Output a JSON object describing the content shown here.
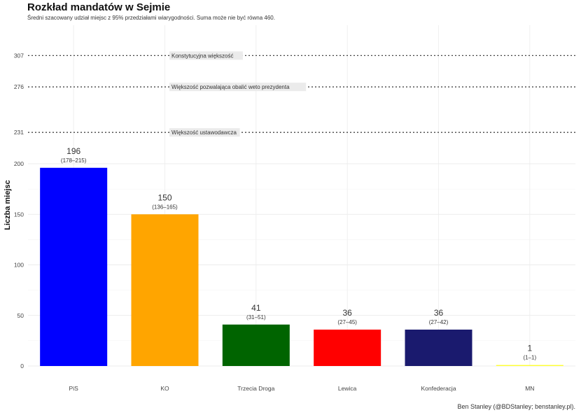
{
  "chart_data": {
    "type": "bar",
    "title": "Rozkład mandatów w Sejmie",
    "subtitle": "Średni szacowany udział miejsc z 95% przedziałami wiarygodności. Suma może nie być równa 460.",
    "caption": "Ben Stanley (@BDStanley; benstanley.pl).",
    "ylabel": "Liczba miejsc",
    "xlabel": "",
    "categories": [
      "PiS",
      "KO",
      "Trzecia Droga",
      "Lewica",
      "Konfederacja",
      "MN"
    ],
    "values": [
      196,
      150,
      41,
      36,
      36,
      1
    ],
    "intervals": [
      "(178–215)",
      "(136–165)",
      "(31–51)",
      "(27–45)",
      "(27–42)",
      "(1–1)"
    ],
    "colors": [
      "#0000ff",
      "#ffa500",
      "#006400",
      "#ff0000",
      "#1a1a6e",
      "#ffff33"
    ],
    "yticks": [
      0,
      50,
      100,
      150,
      200,
      231,
      276,
      307
    ],
    "ylim": [
      0,
      307
    ],
    "grid": true,
    "reference_lines": [
      {
        "value": 307,
        "label": "Konstytucyjna większość"
      },
      {
        "value": 276,
        "label": "Większość pozwalająca obalić weto prezydenta"
      },
      {
        "value": 231,
        "label": "Większość ustawodawcza"
      }
    ]
  }
}
